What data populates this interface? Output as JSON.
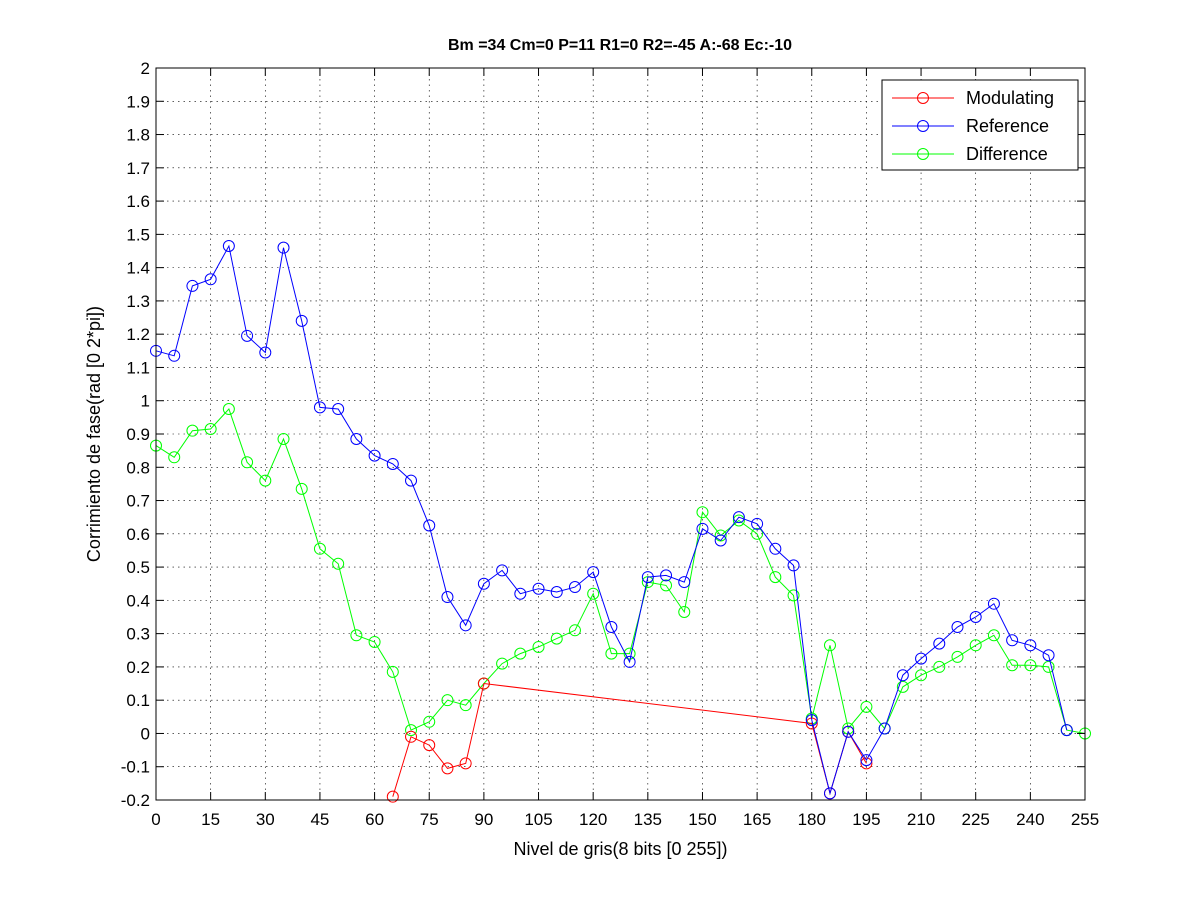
{
  "chart_data": {
    "type": "line",
    "title": "Bm =34  Cm=0  P=11  R1=0  R2=-45  A:-68  Ec:-10",
    "xlabel": "Nivel de gris(8 bits [0 255])",
    "ylabel": "Corrimiento de fase(rad [0 2*pi])",
    "xlim": [
      0,
      255
    ],
    "ylim": [
      -0.2,
      2
    ],
    "xticks": [
      0,
      15,
      30,
      45,
      60,
      75,
      90,
      105,
      120,
      135,
      150,
      165,
      180,
      195,
      210,
      225,
      240,
      255
    ],
    "yticks": [
      -0.2,
      -0.1,
      0,
      0.1,
      0.2,
      0.3,
      0.4,
      0.5,
      0.6,
      0.7,
      0.8,
      0.9,
      1,
      1.1,
      1.2,
      1.3,
      1.4,
      1.5,
      1.6,
      1.7,
      1.8,
      1.9,
      2
    ],
    "xtick_labels": [
      "0",
      "15",
      "30",
      "45",
      "60",
      "75",
      "90",
      "105",
      "120",
      "135",
      "150",
      "165",
      "180",
      "195",
      "210",
      "225",
      "240",
      "255"
    ],
    "ytick_labels": [
      "-0.2",
      "-0.1",
      "0",
      "0.1",
      "0.2",
      "0.3",
      "0.4",
      "0.5",
      "0.6",
      "0.7",
      "0.8",
      "0.9",
      "1",
      "1.1",
      "1.2",
      "1.3",
      "1.4",
      "1.5",
      "1.6",
      "1.7",
      "1.8",
      "1.9",
      "2"
    ],
    "grid": true,
    "legend_position": "top-right",
    "series": [
      {
        "name": "Modulating",
        "color": "#ff0000",
        "x": [
          65,
          70,
          75,
          80,
          85,
          90,
          180,
          185,
          190,
          195
        ],
        "y": [
          -0.19,
          -0.01,
          -0.035,
          -0.105,
          -0.09,
          0.15,
          0.03,
          -0.18,
          0.005,
          -0.09
        ]
      },
      {
        "name": "Reference",
        "color": "#0000ff",
        "x": [
          0,
          5,
          10,
          15,
          20,
          25,
          30,
          35,
          40,
          45,
          50,
          55,
          60,
          65,
          70,
          75,
          80,
          85,
          90,
          95,
          100,
          105,
          110,
          115,
          120,
          125,
          130,
          135,
          140,
          145,
          150,
          155,
          160,
          165,
          170,
          175,
          180,
          185,
          190,
          195,
          200,
          205,
          210,
          215,
          220,
          225,
          230,
          235,
          240,
          245,
          250
        ],
        "y": [
          1.15,
          1.135,
          1.345,
          1.365,
          1.465,
          1.195,
          1.145,
          1.46,
          1.24,
          0.98,
          0.975,
          0.885,
          0.835,
          0.81,
          0.76,
          0.625,
          0.41,
          0.325,
          0.45,
          0.49,
          0.42,
          0.435,
          0.425,
          0.44,
          0.485,
          0.32,
          0.215,
          0.47,
          0.475,
          0.455,
          0.615,
          0.58,
          0.65,
          0.63,
          0.555,
          0.505,
          0.04,
          -0.18,
          0.005,
          -0.08,
          0.015,
          0.175,
          0.225,
          0.27,
          0.32,
          0.35,
          0.39,
          0.28,
          0.265,
          0.235,
          0.01
        ]
      },
      {
        "name": "Difference",
        "color": "#00ff00",
        "x": [
          0,
          5,
          10,
          15,
          20,
          25,
          30,
          35,
          40,
          45,
          50,
          55,
          60,
          65,
          70,
          75,
          80,
          85,
          90,
          95,
          100,
          105,
          110,
          115,
          120,
          125,
          130,
          135,
          140,
          145,
          150,
          155,
          160,
          165,
          170,
          175,
          180,
          185,
          190,
          195,
          200,
          205,
          210,
          215,
          220,
          225,
          230,
          235,
          240,
          245,
          250,
          255
        ],
        "y": [
          0.865,
          0.83,
          0.91,
          0.915,
          0.975,
          0.815,
          0.76,
          0.885,
          0.735,
          0.555,
          0.51,
          0.295,
          0.275,
          0.185,
          0.01,
          0.035,
          0.1,
          0.085,
          0.15,
          0.21,
          0.24,
          0.26,
          0.285,
          0.31,
          0.42,
          0.24,
          0.24,
          0.455,
          0.445,
          0.365,
          0.665,
          0.595,
          0.64,
          0.6,
          0.47,
          0.415,
          0.045,
          0.265,
          0.015,
          0.08,
          0.015,
          0.14,
          0.175,
          0.2,
          0.23,
          0.265,
          0.295,
          0.205,
          0.205,
          0.2,
          0.01,
          0.0
        ]
      }
    ]
  }
}
